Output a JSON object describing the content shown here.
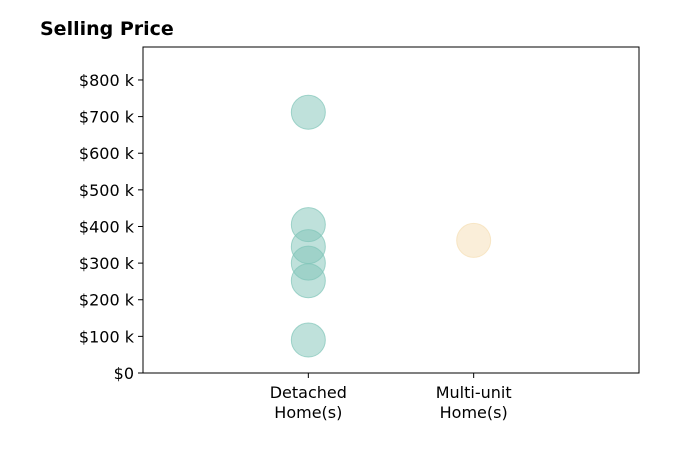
{
  "chart_data": {
    "type": "scatter",
    "title": "Selling Price",
    "xlabel": "",
    "ylabel": "",
    "categories": [
      [
        "Detached",
        "Home(s)"
      ],
      [
        "Multi-unit",
        "Home(s)"
      ]
    ],
    "xlim": [
      -1,
      2
    ],
    "ylim": [
      0,
      890
    ],
    "yticks": [
      0,
      100,
      200,
      300,
      400,
      500,
      600,
      700,
      800
    ],
    "ytick_labels": [
      "$0",
      "$100 k",
      "$200 k",
      "$300 k",
      "$400 k",
      "$500 k",
      "$600 k",
      "$700 k",
      "$800 k"
    ],
    "grid": false,
    "series": [
      {
        "category_index": 0,
        "color": "#7fc4b8",
        "values": [
          712,
          405,
          345,
          300,
          252,
          90
        ]
      },
      {
        "category_index": 1,
        "color": "#f5deb3",
        "values": [
          362
        ]
      }
    ]
  }
}
